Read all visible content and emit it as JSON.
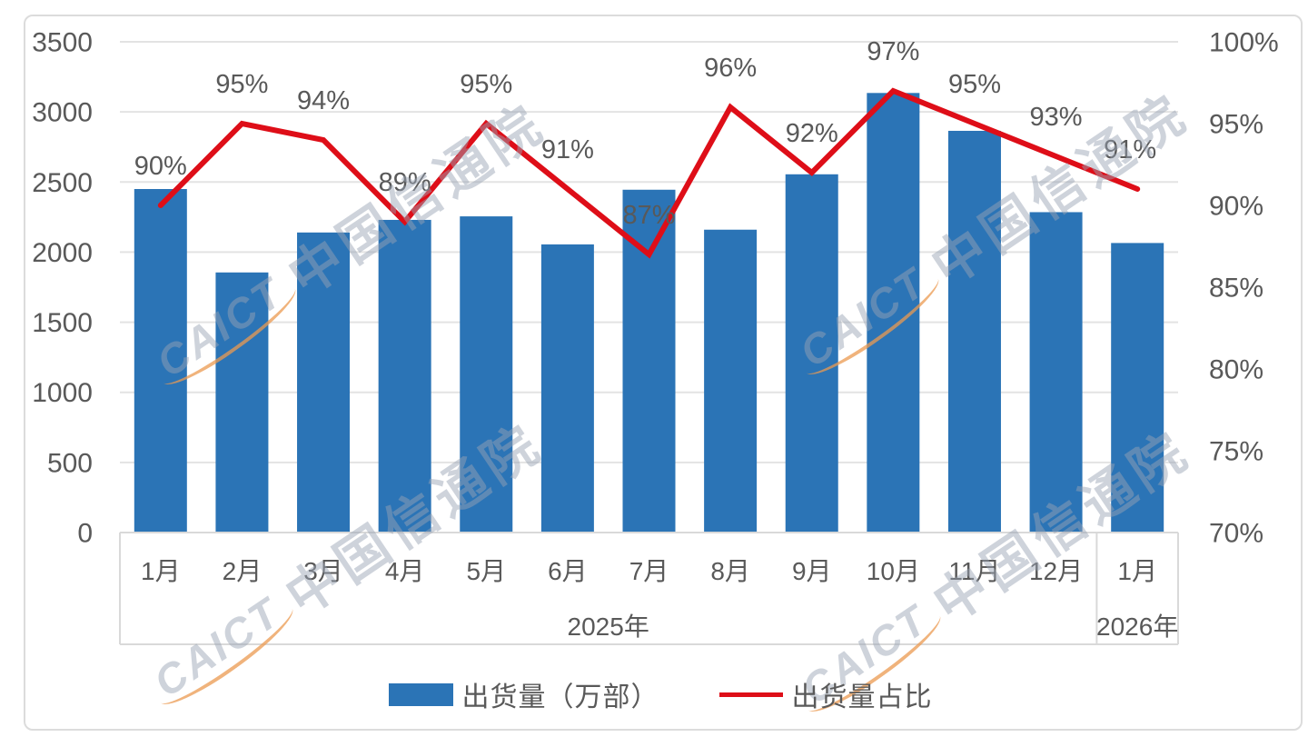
{
  "chart_data": {
    "type": "combo",
    "categories": [
      "1月",
      "2月",
      "3月",
      "4月",
      "5月",
      "6月",
      "7月",
      "8月",
      "9月",
      "10月",
      "11月",
      "12月",
      "1月"
    ],
    "year_groups": [
      {
        "label": "2025年",
        "from": 0,
        "to": 11
      },
      {
        "label": "2026年",
        "from": 12,
        "to": 12
      }
    ],
    "series": [
      {
        "name": "出货量（万部）",
        "type": "bar",
        "axis": "left",
        "values": [
          2450,
          1855,
          2140,
          2230,
          2255,
          2055,
          2445,
          2160,
          2555,
          3135,
          2865,
          2285,
          2065
        ]
      },
      {
        "name": "出货量占比",
        "type": "line",
        "axis": "right",
        "values": [
          90,
          95,
          94,
          89,
          95,
          91,
          87,
          96,
          92,
          97,
          95,
          93,
          91
        ],
        "point_labels": [
          "90%",
          "95%",
          "94%",
          "89%",
          "95%",
          "91%",
          "87%",
          "96%",
          "92%",
          "97%",
          "95%",
          "93%",
          "91%"
        ]
      }
    ],
    "left_axis": {
      "min": 0,
      "max": 3500,
      "step": 500,
      "ticks": [
        "3500",
        "3000",
        "2500",
        "2000",
        "1500",
        "1000",
        "500",
        "0"
      ]
    },
    "right_axis": {
      "min": 70,
      "max": 100,
      "step": 5,
      "ticks": [
        "100%",
        "95%",
        "90%",
        "85%",
        "80%",
        "75%",
        "70%"
      ]
    },
    "grid": true,
    "legend_position": "bottom"
  },
  "colors": {
    "bar": "#2b74b6",
    "line": "#de0e18",
    "grid": "#e3e3e3",
    "axis_band": "#d9d9d9",
    "text": "#595959"
  },
  "watermark": {
    "brand": "CAICT",
    "name": "中国信通院"
  }
}
